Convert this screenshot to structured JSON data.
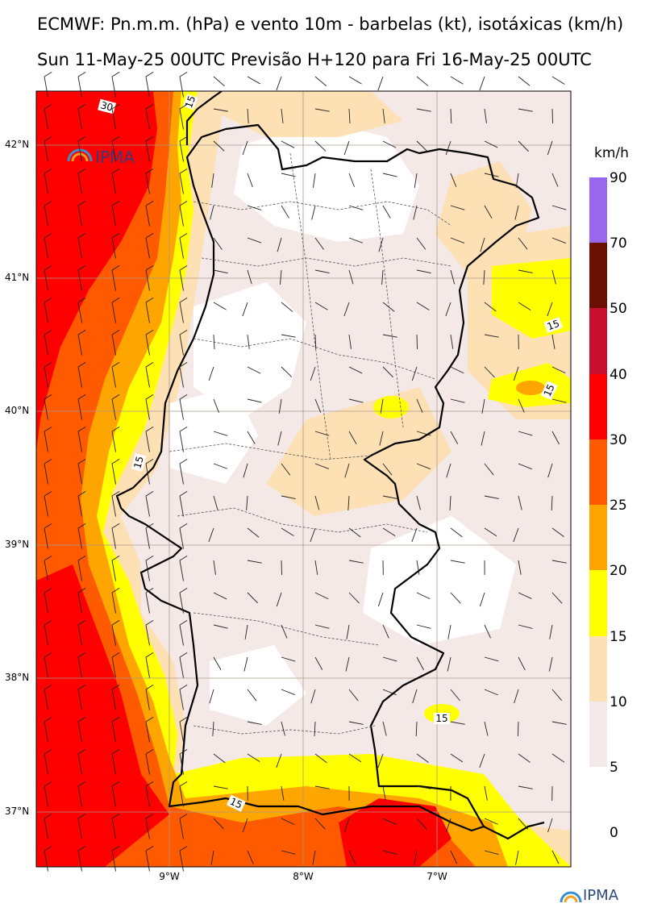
{
  "header": {
    "title_line1": "ECMWF: Pn.m.m. (hPa) e vento 10m - barbelas (kt), isotáxicas (km/h)",
    "title_line2": "Sun 11-May-25 00UTC Previsão H+120 para Fri 16-May-25 00UTC"
  },
  "map": {
    "region": "Portugal (mainland)",
    "lat_labels": [
      "42°N",
      "41°N",
      "40°N",
      "39°N",
      "38°N",
      "37°N"
    ],
    "lon_labels": [
      "9°W",
      "8°W",
      "7°W"
    ],
    "isotach_labels": [
      "30",
      "15",
      "15",
      "15",
      "15",
      "15",
      "15"
    ],
    "watermark": "IPMA"
  },
  "colorbar": {
    "unit": "km/h",
    "levels": [
      "0",
      "5",
      "10",
      "15",
      "20",
      "25",
      "30",
      "40",
      "50",
      "70",
      "90"
    ],
    "colors": {
      "0-5": "#ffffff",
      "5-10": "#f4e9e7",
      "10-15": "#fde0b4",
      "15-20": "#ffff00",
      "20-25": "#ffa500",
      "25-30": "#ff5a00",
      "30-40": "#ff0000",
      "40-50": "#c8102e",
      "50-70": "#6b0f00",
      "70-90": "#9966ee"
    }
  },
  "footer": {
    "logo": "IPMA"
  }
}
